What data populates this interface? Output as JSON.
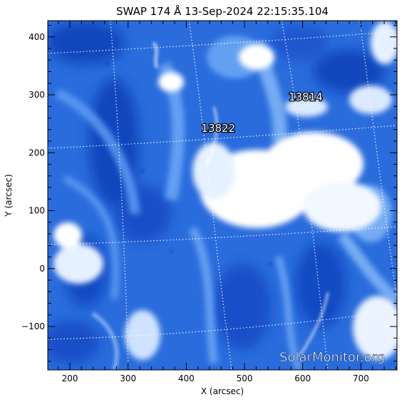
{
  "title": "SWAP 174 Å 13-Sep-2024 22:15:35.104",
  "xlabel": "X (arcsec)",
  "ylabel": "Y (arcsec)",
  "x_ticks": [
    "200",
    "300",
    "400",
    "500",
    "600",
    "700"
  ],
  "y_ticks": [
    "400",
    "300",
    "200",
    "100",
    "0",
    "−100"
  ],
  "x_tick_values": [
    200,
    300,
    400,
    500,
    600,
    700
  ],
  "y_tick_values": [
    400,
    300,
    200,
    100,
    0,
    -100
  ],
  "x_range": [
    162,
    762
  ],
  "y_range": [
    -175,
    428
  ],
  "regions": [
    {
      "label": "13814",
      "x": 605,
      "y": 290
    },
    {
      "label": "13822",
      "x": 455,
      "y": 236
    }
  ],
  "watermark": "SolarMonitor.org",
  "colors": {
    "background": "#2a6cdc",
    "dark": "#0b3fb8",
    "mid": "#4d8ef0",
    "bright": "#ffffff",
    "grid": "#ffffff"
  }
}
